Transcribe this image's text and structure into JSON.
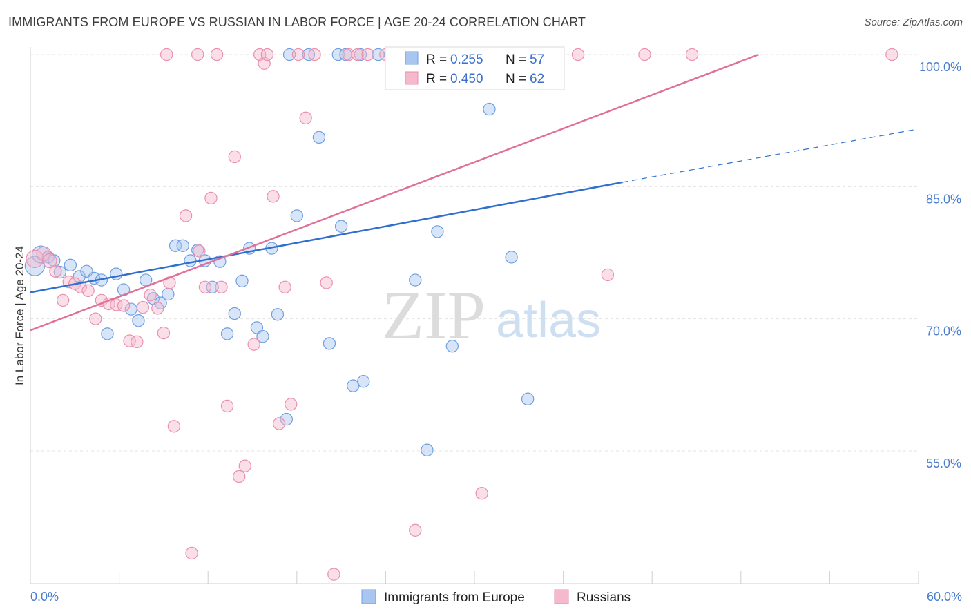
{
  "title": "IMMIGRANTS FROM EUROPE VS RUSSIAN IN LABOR FORCE | AGE 20-24 CORRELATION CHART",
  "source": "Source: ZipAtlas.com",
  "watermark": {
    "zip": "ZIP",
    "atlas": "atlas"
  },
  "colors": {
    "blue_fill": "#a9c6f0",
    "blue_stroke": "#6f9fe0",
    "blue_line": "#2f6fd0",
    "pink_fill": "#f6b8cc",
    "pink_stroke": "#ea8fac",
    "pink_line": "#e07098",
    "grid": "#e3e3e3",
    "tick_label": "#4a7fd0"
  },
  "legend": {
    "series1": {
      "r_label": "R = ",
      "r_value": "0.255",
      "n_label": "N = ",
      "n_value": "57"
    },
    "series2": {
      "r_label": "R = ",
      "r_value": "0.450",
      "n_label": "N = ",
      "n_value": "62"
    }
  },
  "chart_data": {
    "type": "scatter",
    "title": "IMMIGRANTS FROM EUROPE VS RUSSIAN IN LABOR FORCE | AGE 20-24 CORRELATION CHART",
    "xlabel": "",
    "ylabel": "In Labor Force | Age 20-24",
    "xlim": [
      0,
      60
    ],
    "ylim": [
      40,
      100
    ],
    "x_tick_labels": [
      {
        "value": 0,
        "label": "0.0%"
      },
      {
        "value": 60,
        "label": "60.0%"
      }
    ],
    "y_tick_labels": [
      {
        "value": 100,
        "label": "100.0%"
      },
      {
        "value": 85,
        "label": "85.0%"
      },
      {
        "value": 70,
        "label": "70.0%"
      },
      {
        "value": 55,
        "label": "55.0%"
      }
    ],
    "series": [
      {
        "name": "Immigrants from Europe",
        "color": "blue",
        "trend": {
          "x0": 0,
          "y0": 73.0,
          "x1": 40,
          "y1": 85.5,
          "dash_to_x": 60,
          "dash_to_y": 91.5
        },
        "points": [
          [
            0.3,
            76.0,
            18
          ],
          [
            0.7,
            77.3,
            16
          ],
          [
            1.2,
            77.0,
            11
          ],
          [
            1.6,
            76.6,
            11
          ],
          [
            2.0,
            75.3,
            11
          ],
          [
            2.7,
            76.1,
            11
          ],
          [
            3.3,
            74.8,
            11
          ],
          [
            3.8,
            75.4,
            11
          ],
          [
            4.3,
            74.6,
            11
          ],
          [
            4.8,
            74.4,
            11
          ],
          [
            5.2,
            68.3,
            11
          ],
          [
            5.8,
            75.1,
            11
          ],
          [
            6.3,
            73.3,
            11
          ],
          [
            6.8,
            71.1,
            11
          ],
          [
            7.3,
            69.8,
            11
          ],
          [
            7.8,
            74.4,
            11
          ],
          [
            8.3,
            72.3,
            11
          ],
          [
            8.8,
            71.8,
            11
          ],
          [
            9.3,
            72.8,
            11
          ],
          [
            9.8,
            78.3,
            11
          ],
          [
            10.3,
            78.3,
            11
          ],
          [
            10.8,
            76.6,
            11
          ],
          [
            11.3,
            77.8,
            11
          ],
          [
            11.8,
            76.6,
            11
          ],
          [
            12.3,
            73.6,
            11
          ],
          [
            12.8,
            76.5,
            11
          ],
          [
            13.3,
            68.3,
            11
          ],
          [
            13.8,
            70.6,
            11
          ],
          [
            14.3,
            74.3,
            11
          ],
          [
            14.8,
            78.0,
            11
          ],
          [
            15.3,
            69.0,
            11
          ],
          [
            15.7,
            68.0,
            11
          ],
          [
            16.3,
            78.0,
            11
          ],
          [
            16.7,
            70.5,
            11
          ],
          [
            17.3,
            58.6,
            11
          ],
          [
            18.0,
            81.7,
            11
          ],
          [
            17.5,
            100.0,
            11
          ],
          [
            18.8,
            100.0,
            11
          ],
          [
            19.5,
            90.6,
            11
          ],
          [
            20.2,
            67.2,
            11
          ],
          [
            20.8,
            100.0,
            11
          ],
          [
            21.0,
            80.5,
            11
          ],
          [
            21.8,
            62.4,
            11
          ],
          [
            22.3,
            100.0,
            11
          ],
          [
            22.5,
            62.9,
            11
          ],
          [
            23.5,
            100.0,
            11
          ],
          [
            24.3,
            100.0,
            11
          ],
          [
            25.2,
            100.0,
            11
          ],
          [
            26.0,
            74.4,
            11
          ],
          [
            26.8,
            55.1,
            11
          ],
          [
            27.5,
            79.9,
            11
          ],
          [
            28.5,
            66.9,
            11
          ],
          [
            31.0,
            93.8,
            11
          ],
          [
            32.5,
            77.0,
            11
          ],
          [
            33.6,
            60.9,
            11
          ],
          [
            29.8,
            100.0,
            11
          ],
          [
            21.3,
            100.0,
            11
          ]
        ]
      },
      {
        "name": "Russians",
        "color": "pink",
        "trend": {
          "x0": 0,
          "y0": 68.7,
          "x1": 49.2,
          "y1": 100.0
        },
        "points": [
          [
            0.3,
            76.8,
            16
          ],
          [
            0.9,
            77.4,
            13
          ],
          [
            1.3,
            76.6,
            13
          ],
          [
            1.7,
            75.4,
            11
          ],
          [
            2.2,
            72.1,
            11
          ],
          [
            2.6,
            74.2,
            11
          ],
          [
            3.0,
            74.0,
            11
          ],
          [
            3.4,
            73.6,
            11
          ],
          [
            3.9,
            73.2,
            11
          ],
          [
            4.4,
            70.0,
            11
          ],
          [
            4.8,
            72.1,
            11
          ],
          [
            5.3,
            71.7,
            11
          ],
          [
            5.8,
            71.6,
            11
          ],
          [
            6.3,
            71.5,
            11
          ],
          [
            6.7,
            67.5,
            11
          ],
          [
            7.2,
            67.4,
            11
          ],
          [
            7.6,
            71.3,
            11
          ],
          [
            8.1,
            72.7,
            11
          ],
          [
            8.6,
            71.2,
            11
          ],
          [
            9.0,
            68.4,
            11
          ],
          [
            9.4,
            74.1,
            11
          ],
          [
            9.7,
            57.8,
            11
          ],
          [
            10.5,
            81.7,
            11
          ],
          [
            10.9,
            43.4,
            11
          ],
          [
            11.4,
            77.7,
            11
          ],
          [
            11.8,
            73.6,
            11
          ],
          [
            12.2,
            83.7,
            11
          ],
          [
            12.6,
            100.0,
            11
          ],
          [
            12.9,
            73.6,
            11
          ],
          [
            13.3,
            60.1,
            11
          ],
          [
            13.8,
            88.4,
            11
          ],
          [
            14.1,
            52.1,
            11
          ],
          [
            14.5,
            53.3,
            11
          ],
          [
            15.1,
            67.1,
            11
          ],
          [
            15.5,
            100.0,
            11
          ],
          [
            15.8,
            99.0,
            11
          ],
          [
            16.4,
            83.9,
            11
          ],
          [
            16.8,
            58.1,
            11
          ],
          [
            17.2,
            73.6,
            11
          ],
          [
            17.6,
            60.3,
            11
          ],
          [
            18.1,
            100.0,
            11
          ],
          [
            18.6,
            92.8,
            11
          ],
          [
            19.2,
            100.0,
            11
          ],
          [
            20.0,
            74.1,
            11
          ],
          [
            20.5,
            41.0,
            11
          ],
          [
            21.5,
            100.0,
            11
          ],
          [
            22.1,
            100.0,
            11
          ],
          [
            24.0,
            100.0,
            11
          ],
          [
            24.8,
            100.0,
            11
          ],
          [
            26.0,
            46.0,
            11
          ],
          [
            30.5,
            50.2,
            11
          ],
          [
            33.5,
            100.0,
            11
          ],
          [
            35.5,
            100.0,
            11
          ],
          [
            37.0,
            100.0,
            11
          ],
          [
            39.0,
            75.0,
            11
          ],
          [
            41.5,
            100.0,
            11
          ],
          [
            44.7,
            100.0,
            11
          ],
          [
            58.2,
            100.0,
            11
          ],
          [
            22.8,
            100.0,
            11
          ],
          [
            16.0,
            100.0,
            11
          ],
          [
            11.3,
            100.0,
            11
          ],
          [
            9.2,
            100.0,
            11
          ]
        ]
      }
    ]
  }
}
